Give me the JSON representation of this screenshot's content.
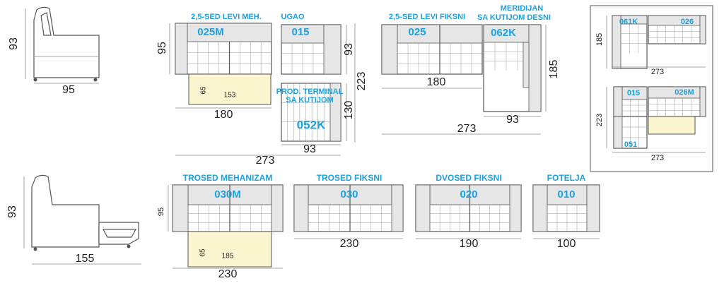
{
  "side_views": [
    {
      "height": "93",
      "depth": "95"
    },
    {
      "height": "93",
      "depth": "155"
    }
  ],
  "corner_set": {
    "total_width": "273",
    "total_depth": "223"
  },
  "modules": [
    {
      "label": "2,5-SED LEVI MEH.",
      "code": "025M",
      "depth": "95",
      "width": "180",
      "bed_depth": "65",
      "bed_length": "153"
    },
    {
      "label": "UGAO",
      "code": "015",
      "depth": "93"
    },
    {
      "label_lines": [
        "PROD. TERMINAL",
        "SA KUTIJOM"
      ],
      "code": "052K",
      "depth": "130",
      "width": "93"
    },
    {
      "label": "2,5-SED LEVI FIKSNI",
      "code": "025",
      "width": "180"
    },
    {
      "label_lines": [
        "MERIDIJAN",
        "SA KUTIJOM DESNI"
      ],
      "code": "062K",
      "depth": "185",
      "width": "93"
    },
    {
      "label": "TROSED MEHANIZAM",
      "code": "030M",
      "depth": "95",
      "bed_depth": "65",
      "bed_length": "185",
      "width": "230"
    },
    {
      "label": "TROSED FIKSNI",
      "code": "030",
      "width": "230"
    },
    {
      "label": "DVOSED FIKSNI",
      "code": "020",
      "width": "190"
    },
    {
      "label": "FOTELJA",
      "code": "010",
      "width": "100"
    }
  ],
  "meridian_total_width": "273",
  "layout_diagrams": [
    {
      "depth": "185",
      "width": "273",
      "codes": [
        "061K",
        "026"
      ]
    },
    {
      "depth": "223",
      "width": "273",
      "codes": [
        "015",
        "026M",
        "051"
      ]
    }
  ]
}
